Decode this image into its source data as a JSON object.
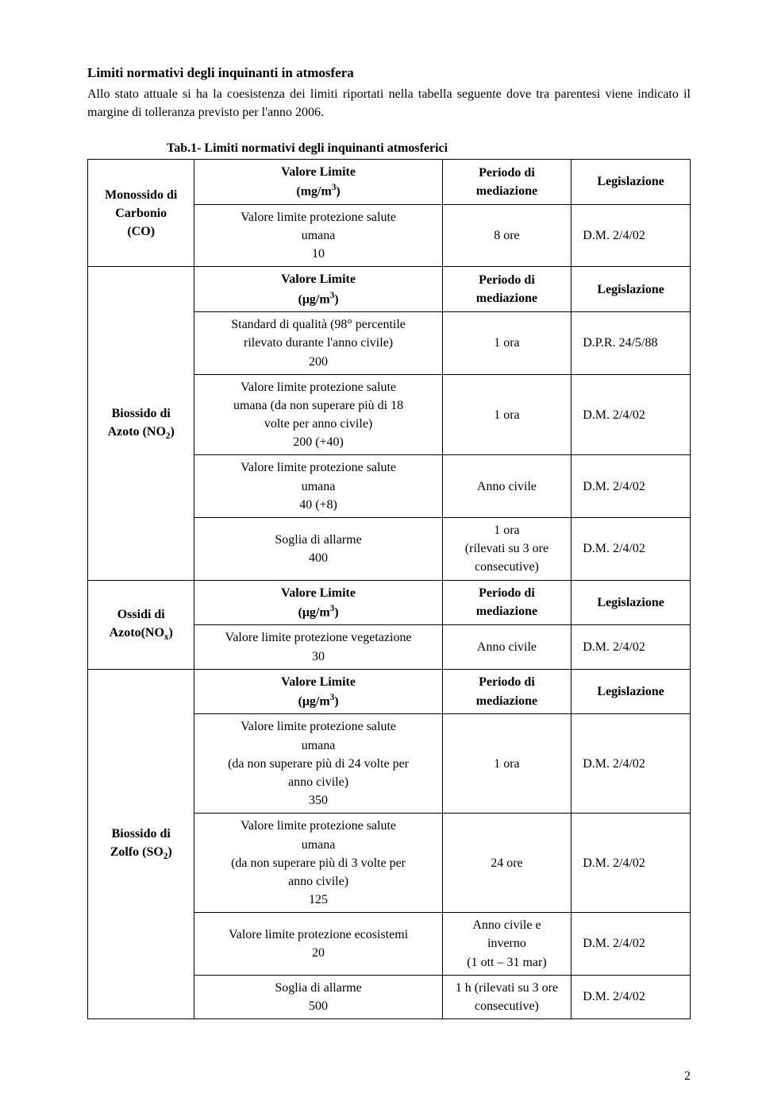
{
  "title": "Limiti normativi degli inquinanti in atmosfera",
  "intro": "Allo stato attuale si ha la coesistenza dei limiti riportati nella tabella seguente dove tra parentesi viene indicato il margine di tolleranza previsto per l'anno 2006.",
  "caption": "Tab.1- Limiti normativi degli inquinanti atmosferici",
  "headers": {
    "limit_mg": "Valore Limite\n(mg/m³)",
    "limit_ug": "Valore Limite\n(μg/m³)",
    "period": "Periodo di\nmediazione",
    "leg": "Legislazione"
  },
  "pollutants": {
    "co": {
      "name": "Monossido di\nCarbonio\n(CO)"
    },
    "no2": {
      "name": "Biossido di\nAzoto (NO₂)"
    },
    "nox": {
      "name": "Ossidi di\nAzoto(NOₓ)"
    },
    "so2": {
      "name": "Biossido di\nZolfo (SO₂)"
    }
  },
  "rows": {
    "co_1": {
      "limit": "Valore limite protezione salute\numana\n10",
      "period": "8 ore",
      "leg": "D.M. 2/4/02"
    },
    "no2_1": {
      "limit": "Standard di qualità (98° percentile\nrilevato durante l'anno civile)\n200",
      "period": "1 ora",
      "leg": "D.P.R. 24/5/88"
    },
    "no2_2": {
      "limit": "Valore limite protezione salute\numana (da non superare più di 18\nvolte per anno civile)\n200 (+40)",
      "period": "1 ora",
      "leg": "D.M. 2/4/02"
    },
    "no2_3": {
      "limit": "Valore limite protezione salute\numana\n40 (+8)",
      "period": "Anno civile",
      "leg": "D.M. 2/4/02"
    },
    "no2_4": {
      "limit": "Soglia di allarme\n400",
      "period": "1 ora\n(rilevati su 3 ore\nconsecutive)",
      "leg": "D.M. 2/4/02"
    },
    "nox_1": {
      "limit": "Valore limite protezione vegetazione\n30",
      "period": "Anno civile",
      "leg": "D.M. 2/4/02"
    },
    "so2_1": {
      "limit": "Valore limite protezione salute\numana\n(da non superare più di 24 volte per\nanno civile)\n350",
      "period": "1 ora",
      "leg": "D.M. 2/4/02"
    },
    "so2_2": {
      "limit": "Valore limite protezione salute\numana\n(da non superare più di 3 volte per\nanno civile)\n125",
      "period": "24 ore",
      "leg": "D.M. 2/4/02"
    },
    "so2_3": {
      "limit": "Valore limite protezione ecosistemi\n20",
      "period": "Anno civile e\ninverno\n(1 ott – 31 mar)",
      "leg": "D.M. 2/4/02"
    },
    "so2_4": {
      "limit": "Soglia di allarme\n500",
      "period": "1 h (rilevati su 3 ore\nconsecutive)",
      "leg": "D.M. 2/4/02"
    }
  },
  "page_num": "2"
}
